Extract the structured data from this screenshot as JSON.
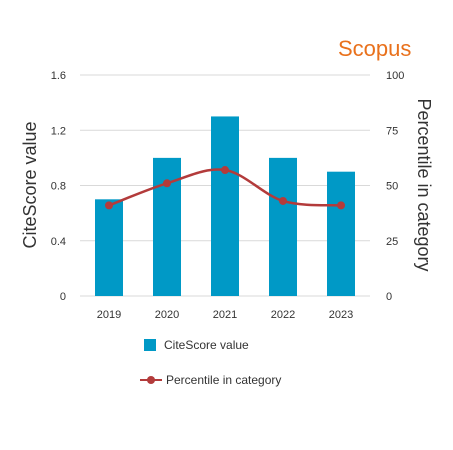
{
  "brand": {
    "label": "Scopus",
    "color": "#e9711c"
  },
  "chart_data": {
    "type": "bar",
    "categories": [
      "2019",
      "2020",
      "2021",
      "2022",
      "2023"
    ],
    "series": [
      {
        "name": "CiteScore value",
        "type": "bar",
        "axis": "left",
        "color": "#0099c6",
        "values": [
          0.7,
          1.0,
          1.3,
          1.0,
          0.9
        ]
      },
      {
        "name": "Percentile in category",
        "type": "line",
        "axis": "right",
        "color": "#b33b3b",
        "values": [
          41,
          51,
          57,
          43,
          41
        ]
      }
    ],
    "ylabel": "CiteScore value",
    "y2label": "Percentile in category",
    "ylim": [
      0,
      1.6
    ],
    "yticks": [
      "0",
      "0.4",
      "0.8",
      "1.2",
      "1.6"
    ],
    "y2lim": [
      0,
      100
    ],
    "y2ticks": [
      "0",
      "25",
      "50",
      "75",
      "100"
    ],
    "grid": true,
    "legend": "bottom"
  }
}
